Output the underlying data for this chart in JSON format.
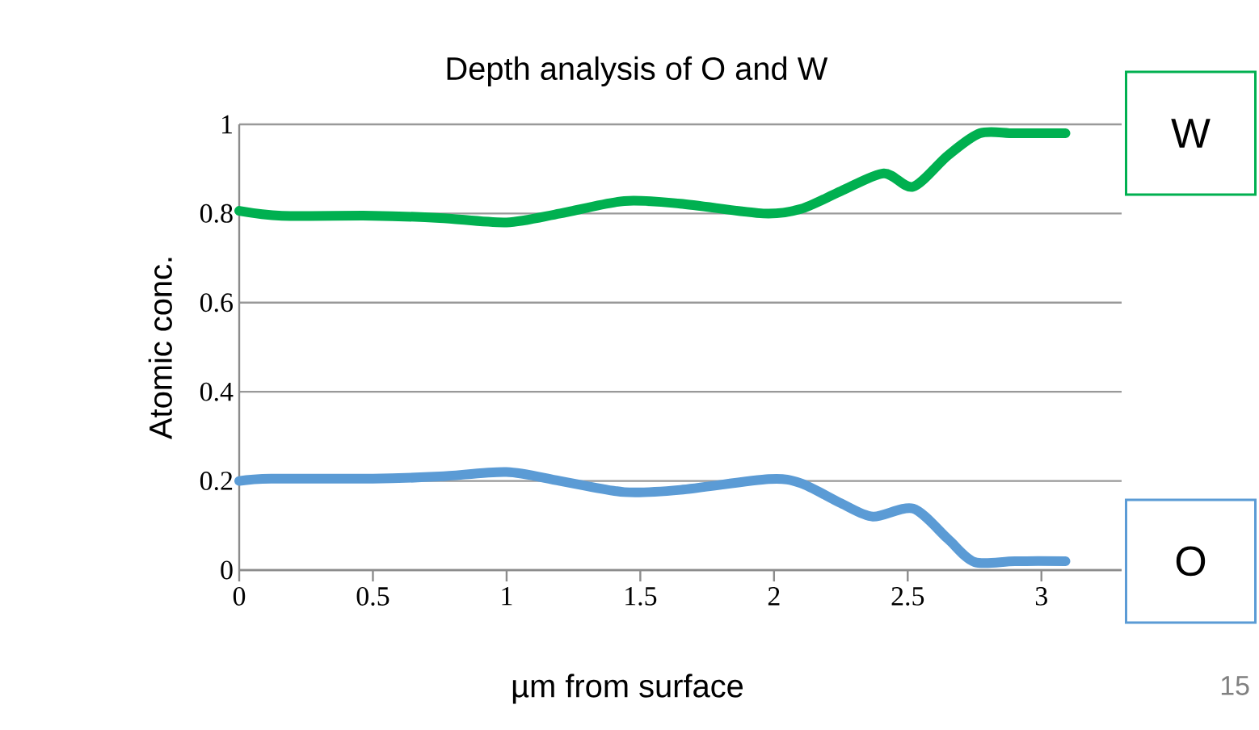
{
  "chart_data": {
    "type": "line",
    "title": "Depth analysis of O and W",
    "xlabel": "µm from surface",
    "ylabel": "Atomic conc.",
    "xlim": [
      0,
      3.3
    ],
    "xticks": [
      0,
      0.5,
      1,
      1.5,
      2,
      2.5,
      3
    ],
    "ylim": [
      0,
      1
    ],
    "yticks": [
      0,
      0.2,
      0.4,
      0.6,
      0.8,
      1
    ],
    "grid": "y",
    "legend": "right",
    "marker": "none",
    "line_style": "solid",
    "annotations": [
      "15"
    ],
    "series": [
      {
        "name": "W",
        "color": "#00b050",
        "x": [
          0,
          0.16,
          0.5,
          0.75,
          1.0,
          1.2,
          1.44,
          1.65,
          1.96,
          2.1,
          2.25,
          2.41,
          2.52,
          2.65,
          2.77,
          2.9,
          3.09
        ],
        "values": [
          0.806,
          0.795,
          0.795,
          0.79,
          0.78,
          0.8,
          0.828,
          0.822,
          0.8,
          0.81,
          0.85,
          0.89,
          0.86,
          0.93,
          0.98,
          0.98,
          0.98
        ]
      },
      {
        "name": "O",
        "color": "#5b9bd5",
        "x": [
          0,
          0.12,
          0.5,
          0.75,
          1.0,
          1.2,
          1.44,
          1.65,
          1.98,
          2.1,
          2.25,
          2.37,
          2.52,
          2.65,
          2.75,
          2.9,
          3.09
        ],
        "values": [
          0.2,
          0.205,
          0.205,
          0.21,
          0.22,
          0.2,
          0.175,
          0.18,
          0.204,
          0.195,
          0.15,
          0.12,
          0.138,
          0.07,
          0.018,
          0.02,
          0.02
        ]
      }
    ]
  }
}
